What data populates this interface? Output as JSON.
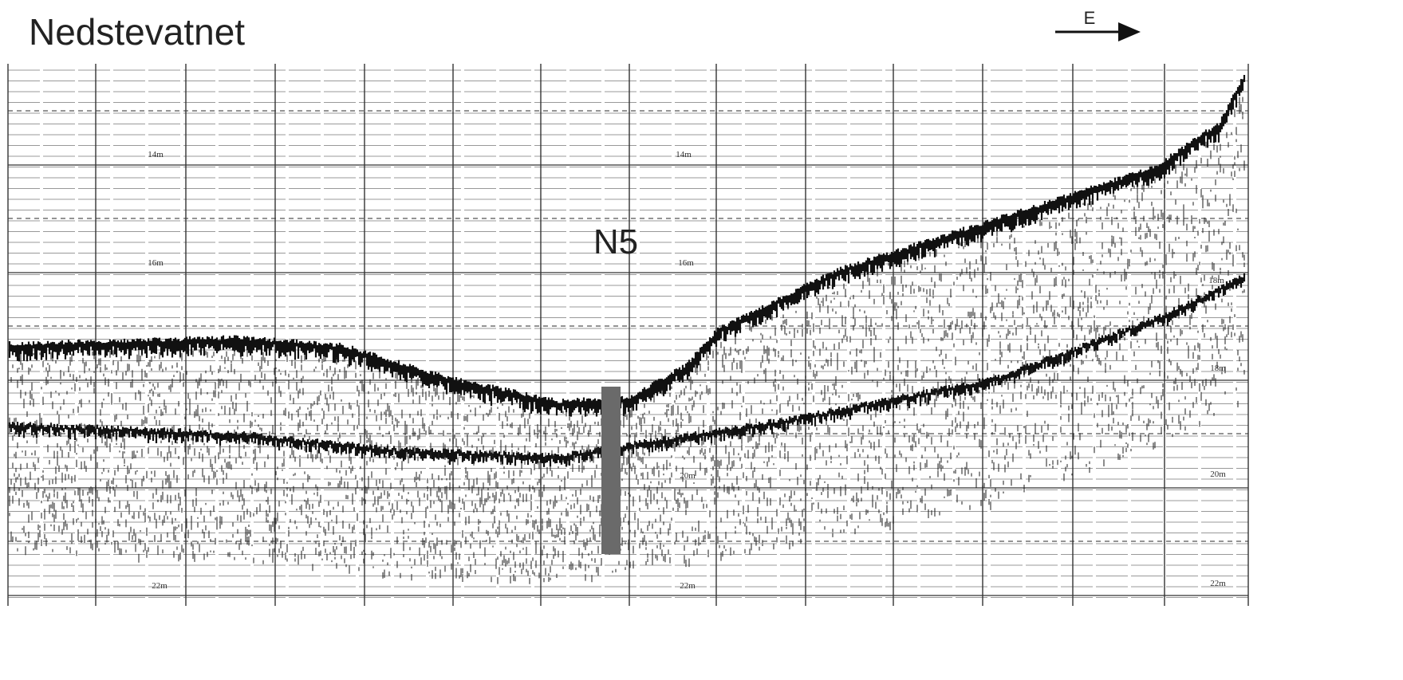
{
  "header": {
    "title": "Nedstevatnet",
    "direction": "E"
  },
  "core": {
    "label": "N5"
  },
  "depth_labels": [
    "14m",
    "16m",
    "22m",
    "14m",
    "16m",
    "20m",
    "22m",
    "18m",
    "18m",
    "20m",
    "22m"
  ]
}
